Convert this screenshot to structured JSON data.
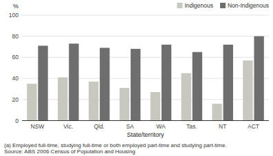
{
  "chart_data": {
    "type": "bar",
    "categories": [
      "NSW",
      "Vic.",
      "Qld.",
      "SA",
      "WA",
      "Tas.",
      "NT",
      "ACT"
    ],
    "series": [
      {
        "name": "Indigenous",
        "color": "#c8c8c0",
        "values": [
          35,
          41,
          37,
          31,
          27,
          45,
          16,
          57
        ]
      },
      {
        "name": "Non-Indigenous",
        "color": "#6e6e6e",
        "values": [
          71,
          73,
          69,
          68,
          72,
          65,
          72,
          80
        ]
      }
    ],
    "xlabel": "State/territory",
    "ylabel": "%",
    "ylim": [
      0,
      100
    ],
    "yticks": [
      0,
      20,
      40,
      60,
      80,
      100
    ],
    "grid": true,
    "legend": "upper right",
    "annotations": [
      "(a) Employed full-time, studying full-time or both employed part-time and studying part-time.",
      "Source: ABS 2006 Census of Population and Housing"
    ]
  }
}
